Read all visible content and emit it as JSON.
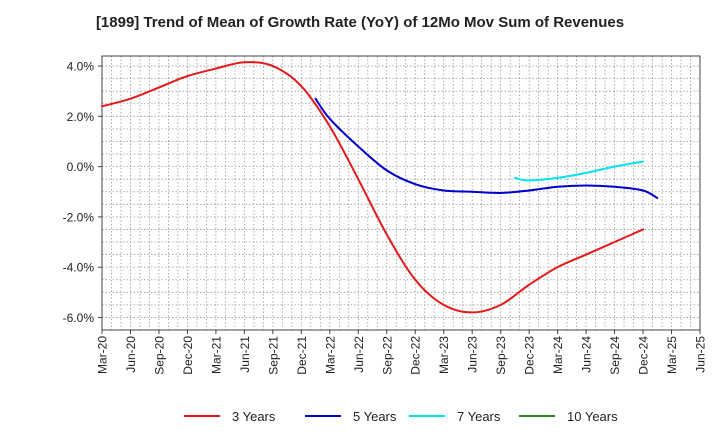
{
  "chart_data": {
    "type": "line",
    "title": "[1899]  Trend of Mean of Growth Rate (YoY) of 12Mo Mov Sum of Revenues",
    "xlabel": "",
    "ylabel": "",
    "x_ticks": [
      "Mar-20",
      "Jun-20",
      "Sep-20",
      "Dec-20",
      "Mar-21",
      "Jun-21",
      "Sep-21",
      "Dec-21",
      "Mar-22",
      "Jun-22",
      "Sep-22",
      "Dec-22",
      "Mar-23",
      "Jun-23",
      "Sep-23",
      "Dec-23",
      "Mar-24",
      "Jun-24",
      "Sep-24",
      "Dec-24",
      "Mar-25",
      "Jun-25"
    ],
    "y_ticks": [
      4.0,
      2.0,
      0.0,
      -2.0,
      -4.0,
      -6.0
    ],
    "y_tick_labels": [
      "4.0%",
      "2.0%",
      "0.0%",
      "-2.0%",
      "-4.0%",
      "-6.0%"
    ],
    "ylim": [
      -6.5,
      4.4
    ],
    "grid": true,
    "legend_position": "bottom",
    "series": [
      {
        "name": "3 Years",
        "color": "#e31a1c",
        "points": [
          [
            0,
            2.4
          ],
          [
            1,
            2.7
          ],
          [
            2,
            3.15
          ],
          [
            3,
            3.6
          ],
          [
            4,
            3.9
          ],
          [
            5,
            4.15
          ],
          [
            6,
            4.0
          ],
          [
            7,
            3.2
          ],
          [
            8,
            1.6
          ],
          [
            9,
            -0.5
          ],
          [
            10,
            -2.7
          ],
          [
            11,
            -4.5
          ],
          [
            12,
            -5.5
          ],
          [
            13,
            -5.8
          ],
          [
            14,
            -5.5
          ],
          [
            15,
            -4.7
          ],
          [
            16,
            -4.0
          ],
          [
            17,
            -3.5
          ],
          [
            18,
            -3.0
          ],
          [
            19,
            -2.5
          ]
        ]
      },
      {
        "name": "5 Years",
        "color": "#0000cc",
        "points": [
          [
            7.5,
            2.7
          ],
          [
            8,
            1.9
          ],
          [
            9,
            0.8
          ],
          [
            10,
            -0.15
          ],
          [
            11,
            -0.7
          ],
          [
            12,
            -0.95
          ],
          [
            13,
            -1.0
          ],
          [
            14,
            -1.05
          ],
          [
            15,
            -0.95
          ],
          [
            16,
            -0.8
          ],
          [
            17,
            -0.75
          ],
          [
            18,
            -0.8
          ],
          [
            19,
            -0.95
          ],
          [
            19.5,
            -1.25
          ]
        ]
      },
      {
        "name": "7 Years",
        "color": "#00e5ee",
        "points": [
          [
            14.5,
            -0.45
          ],
          [
            15,
            -0.55
          ],
          [
            16,
            -0.45
          ],
          [
            17,
            -0.25
          ],
          [
            18,
            0.0
          ],
          [
            19,
            0.2
          ]
        ]
      },
      {
        "name": "10 Years",
        "color": "#228b22",
        "points": []
      }
    ]
  }
}
